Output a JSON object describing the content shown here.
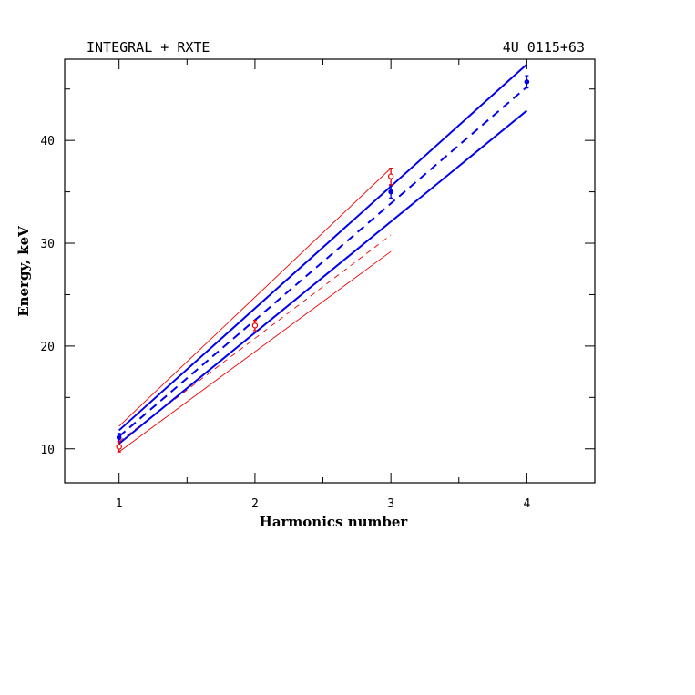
{
  "chart_data": {
    "type": "line",
    "title_left": "INTEGRAL + RXTE",
    "title_right": "4U 0115+63",
    "xlabel": "Harmonics number",
    "ylabel": "Energy, keV",
    "xlim": [
      0.6,
      4.5
    ],
    "ylim": [
      6.7,
      47.9
    ],
    "xticks": [
      1,
      2,
      3,
      4
    ],
    "yticks": [
      10,
      20,
      30,
      40
    ],
    "x_minor_step": 0.5,
    "y_minor_step": 5,
    "grid": false,
    "series": [
      {
        "color": "#0000ee",
        "fit_x": [
          1,
          4
        ],
        "fit_mid": [
          11.2,
          45.2
        ],
        "fit_upper": [
          11.8,
          47.4
        ],
        "fit_lower": [
          10.5,
          42.9
        ],
        "points": [
          {
            "x": 1,
            "y": 11.1,
            "err": 0.4
          },
          {
            "x": 3,
            "y": 35.0,
            "err": 0.6
          },
          {
            "x": 4,
            "y": 45.7,
            "err": 0.6
          }
        ]
      },
      {
        "color": "#ee0000",
        "fit_x": [
          1,
          3
        ],
        "fit_mid": [
          10.7,
          30.8
        ],
        "fit_upper": [
          12.2,
          37.3
        ],
        "fit_lower": [
          9.7,
          29.2
        ],
        "points": [
          {
            "x": 1,
            "y": 10.2,
            "err": 0.5
          },
          {
            "x": 2,
            "y": 22.0,
            "err": 0.5
          },
          {
            "x": 3,
            "y": 36.5,
            "err": 0.8
          }
        ]
      }
    ]
  }
}
